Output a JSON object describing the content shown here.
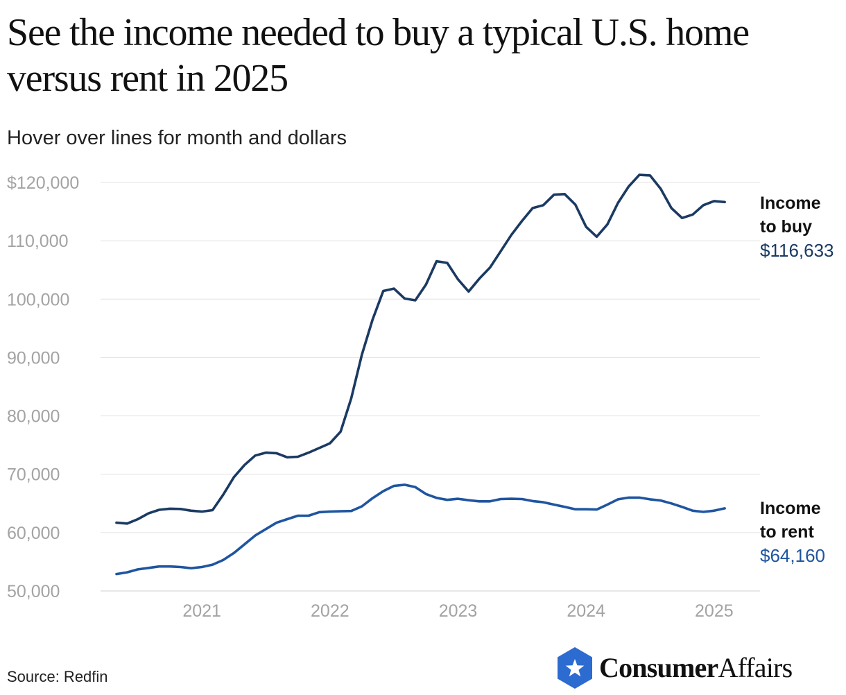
{
  "header": {
    "title": "See the income needed to buy a typical U.S. home versus rent in 2025",
    "subtitle": "Hover over lines for month and dollars"
  },
  "footer": {
    "source": "Source: Redfin",
    "brand_bold": "Consumer",
    "brand_light": "Affairs"
  },
  "colors": {
    "buy_line": "#1b3a63",
    "rent_line": "#1f55a0",
    "grid": "#e3e3e3",
    "tick_label": "#a3a3a3"
  },
  "chart_data": {
    "type": "line",
    "title": "See the income needed to buy a typical U.S. home versus rent in 2025",
    "subtitle": "Hover over lines for month and dollars",
    "xlabel": "",
    "ylabel": "",
    "ylim": [
      50000,
      120000
    ],
    "grid": true,
    "x_start": 2020.333,
    "x_step": 0.08333,
    "x_ticks": [
      {
        "value": 2021,
        "label": "2021"
      },
      {
        "value": 2022,
        "label": "2022"
      },
      {
        "value": 2023,
        "label": "2023"
      },
      {
        "value": 2024,
        "label": "2024"
      },
      {
        "value": 2025,
        "label": "2025"
      }
    ],
    "y_ticks": [
      {
        "value": 50000,
        "label": "50,000"
      },
      {
        "value": 60000,
        "label": "60,000"
      },
      {
        "value": 70000,
        "label": "70,000"
      },
      {
        "value": 80000,
        "label": "80,000"
      },
      {
        "value": 90000,
        "label": "90,000"
      },
      {
        "value": 100000,
        "label": "100,000"
      },
      {
        "value": 110000,
        "label": "110,000"
      },
      {
        "value": 120000,
        "label": "$120,000"
      }
    ],
    "series": [
      {
        "name": "Income to buy",
        "label_line1": "Income",
        "label_line2": "to buy",
        "final_label": "$116,633",
        "color": "#1b3a63",
        "values": [
          61700,
          61550,
          62300,
          63300,
          63900,
          64100,
          64050,
          63750,
          63600,
          63850,
          66500,
          69500,
          71600,
          73200,
          73700,
          73600,
          72900,
          73000,
          73700,
          74500,
          75300,
          77300,
          83000,
          90500,
          96500,
          101400,
          101800,
          100100,
          99800,
          102500,
          106500,
          106200,
          103400,
          101300,
          103500,
          105400,
          108200,
          111000,
          113400,
          115600,
          116100,
          117900,
          118000,
          116200,
          112400,
          110700,
          112800,
          116500,
          119300,
          121300,
          121200,
          118900,
          115600,
          113900,
          114500,
          116100,
          116800,
          116633
        ]
      },
      {
        "name": "Income to rent",
        "label_line1": "Income",
        "label_line2": "to rent",
        "final_label": "$64,160",
        "color": "#1f55a0",
        "values": [
          52900,
          53200,
          53700,
          53950,
          54200,
          54200,
          54100,
          53900,
          54100,
          54500,
          55300,
          56500,
          58000,
          59500,
          60600,
          61700,
          62300,
          62900,
          62900,
          63500,
          63600,
          63650,
          63700,
          64500,
          65900,
          67100,
          68000,
          68200,
          67800,
          66600,
          65950,
          65600,
          65800,
          65550,
          65350,
          65350,
          65750,
          65800,
          65750,
          65400,
          65200,
          64800,
          64400,
          64000,
          64000,
          63950,
          64800,
          65700,
          66000,
          66000,
          65700,
          65500,
          65000,
          64400,
          63750,
          63550,
          63750,
          64160
        ]
      }
    ]
  }
}
